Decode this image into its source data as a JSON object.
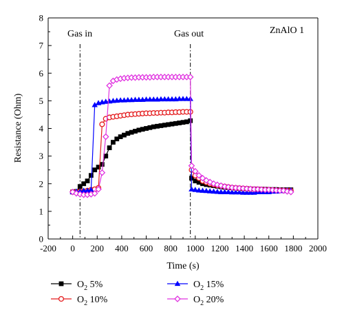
{
  "chart_data": {
    "type": "line",
    "title": "",
    "panel_label": "ZnAlO 1",
    "xlabel": "Time (s)",
    "ylabel": "Resistance (Ohm)",
    "xlim": [
      -200,
      2000
    ],
    "ylim": [
      0,
      8
    ],
    "xticks": [
      -200,
      0,
      200,
      400,
      600,
      800,
      1000,
      1200,
      1400,
      1600,
      1800,
      2000
    ],
    "yticks": [
      0,
      1,
      2,
      3,
      4,
      5,
      6,
      7,
      8
    ],
    "grid": false,
    "legend_position": "bottom",
    "annotations": [
      {
        "text": "Gas in",
        "x": 60
      },
      {
        "text": "Gas out",
        "x": 960
      }
    ],
    "series": [
      {
        "name": "O2 5%",
        "name_base": "O",
        "name_sub": "2",
        "name_suffix": " 5%",
        "color": "#000000",
        "marker": "square-filled",
        "x": [
          0,
          30,
          60,
          90,
          120,
          150,
          180,
          210,
          240,
          270,
          300,
          330,
          360,
          390,
          420,
          450,
          480,
          510,
          540,
          570,
          600,
          630,
          660,
          690,
          720,
          750,
          780,
          810,
          840,
          870,
          900,
          930,
          960,
          970,
          1000,
          1030,
          1060,
          1090,
          1120,
          1150,
          1180,
          1210,
          1240,
          1270,
          1300,
          1330,
          1360,
          1390,
          1420,
          1450,
          1480,
          1510,
          1540,
          1570,
          1600,
          1630,
          1660,
          1690,
          1720,
          1750,
          1780
        ],
        "values": [
          1.7,
          1.72,
          1.9,
          2.0,
          2.1,
          2.3,
          2.5,
          2.6,
          2.7,
          3.0,
          3.3,
          3.5,
          3.62,
          3.7,
          3.76,
          3.82,
          3.86,
          3.9,
          3.94,
          3.97,
          4.0,
          4.03,
          4.06,
          4.08,
          4.1,
          4.12,
          4.14,
          4.16,
          4.18,
          4.2,
          4.22,
          4.24,
          4.28,
          2.2,
          2.1,
          2.05,
          2.0,
          1.97,
          1.95,
          1.93,
          1.91,
          1.89,
          1.87,
          1.86,
          1.85,
          1.84,
          1.83,
          1.82,
          1.82,
          1.81,
          1.81,
          1.8,
          1.8,
          1.8,
          1.79,
          1.79,
          1.79,
          1.78,
          1.78,
          1.78,
          1.78
        ]
      },
      {
        "name": "O2 10%",
        "name_base": "O",
        "name_sub": "2",
        "name_suffix": " 10%",
        "color": "#e41a1c",
        "marker": "circle-open",
        "x": [
          0,
          30,
          60,
          90,
          120,
          150,
          180,
          210,
          240,
          270,
          300,
          330,
          360,
          390,
          420,
          450,
          480,
          510,
          540,
          570,
          600,
          630,
          660,
          690,
          720,
          750,
          780,
          810,
          840,
          870,
          900,
          930,
          960,
          970,
          1000,
          1030,
          1060,
          1090,
          1120,
          1150,
          1180,
          1210,
          1240,
          1270,
          1300,
          1330,
          1360,
          1390,
          1420,
          1450,
          1480,
          1510,
          1540,
          1570,
          1600,
          1630,
          1660,
          1690,
          1720,
          1750,
          1780
        ],
        "values": [
          1.7,
          1.7,
          1.72,
          1.72,
          1.75,
          1.78,
          1.8,
          1.85,
          4.15,
          4.35,
          4.4,
          4.42,
          4.44,
          4.46,
          4.48,
          4.5,
          4.51,
          4.52,
          4.53,
          4.54,
          4.55,
          4.55,
          4.56,
          4.56,
          4.57,
          4.57,
          4.58,
          4.58,
          4.59,
          4.59,
          4.6,
          4.6,
          4.6,
          2.5,
          2.3,
          2.2,
          2.1,
          2.05,
          2.0,
          1.97,
          1.94,
          1.92,
          1.9,
          1.88,
          1.86,
          1.85,
          1.84,
          1.83,
          1.82,
          1.81,
          1.8,
          1.8,
          1.79,
          1.78,
          1.78,
          1.77,
          1.76,
          1.76,
          1.75,
          1.75,
          1.75
        ]
      },
      {
        "name": "O2 15%",
        "name_base": "O",
        "name_sub": "2",
        "name_suffix": " 15%",
        "color": "#0000ff",
        "marker": "triangle-filled",
        "x": [
          0,
          30,
          60,
          90,
          120,
          150,
          180,
          210,
          240,
          270,
          300,
          330,
          360,
          390,
          420,
          450,
          480,
          510,
          540,
          570,
          600,
          630,
          660,
          690,
          720,
          750,
          780,
          810,
          840,
          870,
          900,
          930,
          960,
          970,
          1000,
          1030,
          1060,
          1090,
          1120,
          1150,
          1180,
          1210,
          1240,
          1270,
          1300,
          1330,
          1360,
          1390,
          1420,
          1450,
          1480,
          1510,
          1540,
          1570,
          1600,
          1630,
          1660,
          1690,
          1720,
          1750,
          1780
        ],
        "values": [
          1.7,
          1.72,
          1.72,
          1.75,
          1.75,
          1.78,
          4.85,
          4.92,
          4.95,
          4.97,
          4.98,
          5.0,
          5.01,
          5.02,
          5.02,
          5.03,
          5.03,
          5.04,
          5.04,
          5.04,
          5.05,
          5.05,
          5.05,
          5.05,
          5.06,
          5.06,
          5.06,
          5.06,
          5.06,
          5.07,
          5.07,
          5.07,
          5.07,
          1.8,
          1.78,
          1.76,
          1.75,
          1.74,
          1.73,
          1.72,
          1.71,
          1.7,
          1.7,
          1.7,
          1.69,
          1.69,
          1.69,
          1.68,
          1.68,
          1.68,
          1.68,
          1.7,
          1.7,
          1.7,
          1.7,
          1.72,
          1.72,
          1.74,
          1.74,
          1.76,
          1.76
        ]
      },
      {
        "name": "O2 20%",
        "name_base": "O",
        "name_sub": "2",
        "name_suffix": " 20%",
        "color": "#e033e0",
        "marker": "diamond-open",
        "x": [
          0,
          30,
          60,
          90,
          120,
          150,
          180,
          210,
          240,
          270,
          300,
          330,
          360,
          390,
          420,
          450,
          480,
          510,
          540,
          570,
          600,
          630,
          660,
          690,
          720,
          750,
          780,
          810,
          840,
          870,
          900,
          930,
          960,
          970,
          1000,
          1030,
          1060,
          1090,
          1120,
          1150,
          1180,
          1210,
          1240,
          1270,
          1300,
          1330,
          1360,
          1390,
          1420,
          1450,
          1480,
          1510,
          1540,
          1570,
          1600,
          1630,
          1660,
          1690,
          1720,
          1750,
          1780
        ],
        "values": [
          1.7,
          1.65,
          1.62,
          1.6,
          1.6,
          1.62,
          1.65,
          1.8,
          2.4,
          3.7,
          5.55,
          5.72,
          5.77,
          5.8,
          5.82,
          5.83,
          5.84,
          5.84,
          5.85,
          5.85,
          5.85,
          5.85,
          5.86,
          5.86,
          5.86,
          5.86,
          5.86,
          5.86,
          5.86,
          5.86,
          5.86,
          5.86,
          5.86,
          2.65,
          2.45,
          2.3,
          2.2,
          2.12,
          2.06,
          2.0,
          1.96,
          1.93,
          1.9,
          1.88,
          1.86,
          1.85,
          1.84,
          1.83,
          1.82,
          1.81,
          1.8,
          1.8,
          1.79,
          1.78,
          1.78,
          1.77,
          1.76,
          1.75,
          1.75,
          1.72,
          1.7
        ]
      }
    ]
  }
}
